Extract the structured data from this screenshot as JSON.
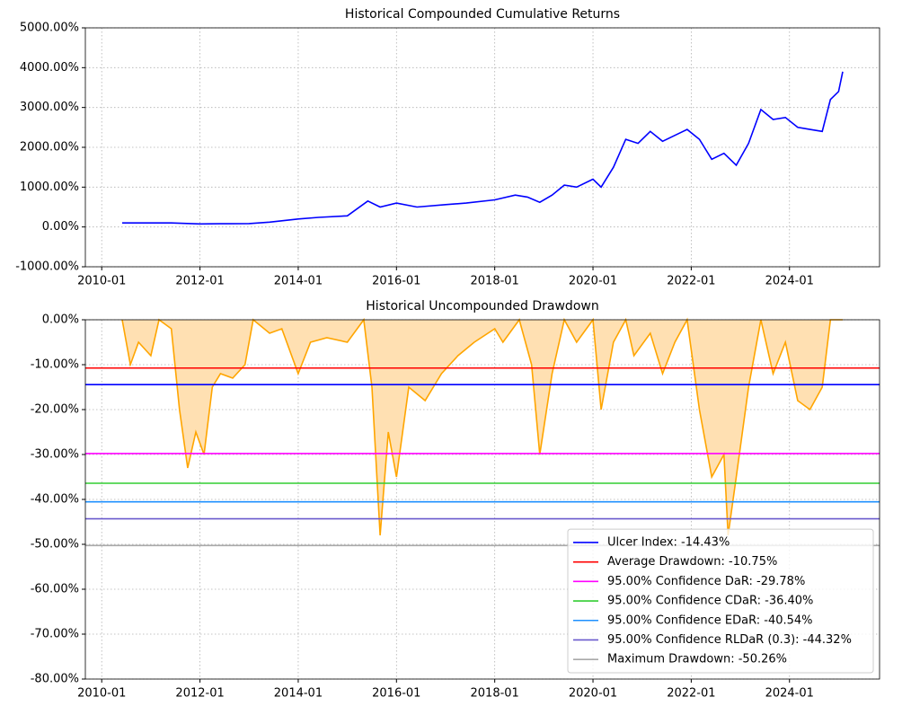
{
  "chart_data": [
    {
      "type": "line",
      "title": "Historical Compounded Cumulative Returns",
      "x": [
        "2010-06",
        "2011-01",
        "2011-06",
        "2012-01",
        "2012-06",
        "2013-01",
        "2013-06",
        "2014-01",
        "2014-06",
        "2015-01",
        "2015-06",
        "2015-09",
        "2016-01",
        "2016-06",
        "2017-01",
        "2017-06",
        "2018-01",
        "2018-06",
        "2018-09",
        "2018-12",
        "2019-03",
        "2019-06",
        "2019-09",
        "2020-01",
        "2020-03",
        "2020-06",
        "2020-09",
        "2020-12",
        "2021-03",
        "2021-06",
        "2021-09",
        "2021-12",
        "2022-03",
        "2022-06",
        "2022-09",
        "2022-12",
        "2023-03",
        "2023-06",
        "2023-09",
        "2023-12",
        "2024-03",
        "2024-06",
        "2024-09",
        "2024-11",
        "2025-01",
        "2025-02"
      ],
      "series": [
        {
          "color": "#0000ff",
          "values": [
            100,
            100,
            100,
            75,
            80,
            85,
            120,
            200,
            240,
            280,
            650,
            500,
            600,
            500,
            560,
            600,
            680,
            800,
            750,
            620,
            800,
            1050,
            1000,
            1200,
            1000,
            1500,
            2200,
            2100,
            2400,
            2150,
            2300,
            2450,
            2200,
            1700,
            1850,
            1550,
            2100,
            2950,
            2700,
            2750,
            2500,
            2450,
            2400,
            3200,
            3400,
            3900
          ]
        }
      ],
      "xlim": [
        "2009-09",
        "2025-11"
      ],
      "xticks": [
        "2010-01",
        "2012-01",
        "2014-01",
        "2016-01",
        "2018-01",
        "2020-01",
        "2022-01",
        "2024-01"
      ],
      "ylim": [
        -1000,
        5000
      ],
      "yticks": [
        {
          "value": -1000,
          "label": "-1000.00%"
        },
        {
          "value": 0,
          "label": "0.00%"
        },
        {
          "value": 1000,
          "label": "1000.00%"
        },
        {
          "value": 2000,
          "label": "2000.00%"
        },
        {
          "value": 3000,
          "label": "3000.00%"
        },
        {
          "value": 4000,
          "label": "4000.00%"
        },
        {
          "value": 5000,
          "label": "5000.00%"
        }
      ],
      "grid": true
    },
    {
      "type": "line",
      "title": "Historical Uncompounded Drawdown",
      "x": [
        "2010-06",
        "2010-08",
        "2010-10",
        "2011-01",
        "2011-03",
        "2011-06",
        "2011-08",
        "2011-10",
        "2011-12",
        "2012-02",
        "2012-04",
        "2012-06",
        "2012-09",
        "2012-12",
        "2013-02",
        "2013-06",
        "2013-09",
        "2014-01",
        "2014-04",
        "2014-08",
        "2015-01",
        "2015-05",
        "2015-07",
        "2015-09",
        "2015-11",
        "2016-01",
        "2016-04",
        "2016-08",
        "2016-12",
        "2017-04",
        "2017-08",
        "2018-01",
        "2018-03",
        "2018-07",
        "2018-10",
        "2018-12",
        "2019-03",
        "2019-06",
        "2019-09",
        "2020-01",
        "2020-03",
        "2020-06",
        "2020-09",
        "2020-11",
        "2021-03",
        "2021-06",
        "2021-09",
        "2021-12",
        "2022-03",
        "2022-06",
        "2022-09",
        "2022-10",
        "2022-12",
        "2023-03",
        "2023-06",
        "2023-09",
        "2023-12",
        "2024-03",
        "2024-06",
        "2024-09",
        "2024-11",
        "2025-02"
      ],
      "series": [
        {
          "color": "#ffa500",
          "fill": "#ffe0b2",
          "values": [
            0,
            -10,
            -5,
            -8,
            0,
            -2,
            -20,
            -33,
            -25,
            -30,
            -15,
            -12,
            -13,
            -10,
            0,
            -3,
            -2,
            -12,
            -5,
            -4,
            -5,
            0,
            -15,
            -48,
            -25,
            -35,
            -15,
            -18,
            -12,
            -8,
            -5,
            -2,
            -5,
            0,
            -10,
            -30,
            -12,
            0,
            -5,
            0,
            -20,
            -5,
            0,
            -8,
            -3,
            -12,
            -5,
            0,
            -20,
            -35,
            -30,
            -48,
            -35,
            -15,
            0,
            -12,
            -5,
            -18,
            -20,
            -15,
            0,
            0
          ]
        }
      ],
      "hlines": [
        {
          "name": "Ulcer Index: -14.43%",
          "value": -14.43,
          "color": "#0000ff"
        },
        {
          "name": "Average Drawdown: -10.75%",
          "value": -10.75,
          "color": "#ff0000"
        },
        {
          "name": "95.00% Confidence DaR: -29.78%",
          "value": -29.78,
          "color": "#ff00ff"
        },
        {
          "name": "95.00% Confidence CDaR: -36.40%",
          "value": -36.4,
          "color": "#32cd32"
        },
        {
          "name": "95.00% Confidence EDaR: -40.54%",
          "value": -40.54,
          "color": "#1e90ff"
        },
        {
          "name": "95.00% Confidence RLDaR (0.3): -44.32%",
          "value": -44.32,
          "color": "#6a5acd"
        },
        {
          "name": "Maximum Drawdown: -50.26%",
          "value": -50.26,
          "color": "#a9a9a9"
        }
      ],
      "xlim": [
        "2009-09",
        "2025-11"
      ],
      "xticks": [
        "2010-01",
        "2012-01",
        "2014-01",
        "2016-01",
        "2018-01",
        "2020-01",
        "2022-01",
        "2024-01"
      ],
      "ylim": [
        -80,
        0
      ],
      "yticks": [
        {
          "value": -80,
          "label": "-80.00%"
        },
        {
          "value": -70,
          "label": "-70.00%"
        },
        {
          "value": -60,
          "label": "-60.00%"
        },
        {
          "value": -50,
          "label": "-50.00%"
        },
        {
          "value": -40,
          "label": "-40.00%"
        },
        {
          "value": -30,
          "label": "-30.00%"
        },
        {
          "value": -20,
          "label": "-20.00%"
        },
        {
          "value": -10,
          "label": "-10.00%"
        },
        {
          "value": 0,
          "label": "0.00%"
        }
      ],
      "grid": true,
      "legend": "lower right"
    }
  ]
}
